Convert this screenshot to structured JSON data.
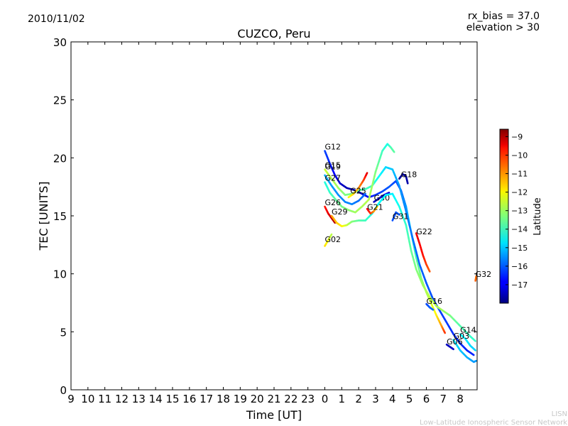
{
  "header": {
    "date": "2010/11/02",
    "rx_bias": "rx_bias = 37.0",
    "elevation": "elevation > 30"
  },
  "footer": {
    "line1": "LISN",
    "line2": "Low-Latitude Ionospheric Sensor Network"
  },
  "colorbar": {
    "label": "Latitude",
    "min": -18,
    "max": -8.6,
    "ticks": [
      -17,
      -16,
      -15,
      -14,
      -13,
      -12,
      -11,
      -10,
      -9
    ],
    "tick_labels": [
      "−17",
      "−16",
      "−15",
      "−14",
      "−13",
      "−12",
      "−11",
      "−10",
      "−9"
    ],
    "colormap": "jet"
  },
  "chart_data": {
    "type": "scatter",
    "title": "CUZCO, Peru",
    "xlabel": "Time [UT]",
    "ylabel": "TEC [UNITS]",
    "xlim": [
      -15,
      9
    ],
    "ylim": [
      0,
      30
    ],
    "x_ticks": [
      -15,
      -14,
      -13,
      -12,
      -11,
      -10,
      -9,
      -8,
      -7,
      -6,
      -5,
      -4,
      -3,
      -2,
      -1,
      0,
      1,
      2,
      3,
      4,
      5,
      6,
      7,
      8
    ],
    "x_tick_labels": [
      "9",
      "10",
      "11",
      "12",
      "13",
      "14",
      "15",
      "16",
      "17",
      "18",
      "19",
      "20",
      "21",
      "22",
      "23",
      "0",
      "1",
      "2",
      "3",
      "4",
      "5",
      "6",
      "7",
      "8"
    ],
    "y_ticks": [
      0,
      5,
      10,
      15,
      20,
      25,
      30
    ],
    "y_tick_labels": [
      "0",
      "5",
      "10",
      "15",
      "20",
      "25",
      "30"
    ],
    "grid": false,
    "series": [
      {
        "name": "G12",
        "label": {
          "x": 0.0,
          "y": 20.6
        },
        "points": [
          [
            0,
            20.6,
            -16.2
          ],
          [
            0.3,
            19.5,
            -16.5
          ],
          [
            0.6,
            18.5,
            -16.9
          ],
          [
            0.9,
            17.8,
            -17.3
          ],
          [
            1.3,
            17.4,
            -17.5
          ],
          [
            1.8,
            17.2,
            -17.6
          ],
          [
            2.2,
            16.9,
            -17.4
          ],
          [
            2.6,
            16.6,
            -16.8
          ],
          [
            3.0,
            16.8,
            -16.4
          ],
          [
            3.4,
            17.1,
            -16.2
          ],
          [
            3.8,
            17.5,
            -16.0
          ],
          [
            4.2,
            18.0,
            -16.2
          ],
          [
            4.5,
            17.2,
            -16.1
          ],
          [
            4.8,
            15.8,
            -15.4
          ],
          [
            5.1,
            13.6,
            -14.4
          ],
          [
            5.4,
            11.4,
            -13.7
          ],
          [
            5.7,
            9.6,
            -13.3
          ],
          [
            6.0,
            8.4,
            -12.9
          ],
          [
            6.3,
            7.4,
            -12.5
          ],
          [
            6.6,
            6.4,
            -12.0
          ],
          [
            6.9,
            5.5,
            -11.2
          ],
          [
            7.1,
            4.9,
            -10.2
          ]
        ]
      },
      {
        "name": "G15",
        "label": {
          "x": 0.0,
          "y": 19.0
        },
        "points": [
          [
            0,
            19.0,
            -12.6
          ],
          [
            0.4,
            18.2,
            -12.8
          ],
          [
            0.8,
            17.4,
            -13.0
          ],
          [
            1.2,
            16.8,
            -13.3
          ],
          [
            1.6,
            16.9,
            -13.4
          ],
          [
            2.0,
            17.2,
            -13.6
          ],
          [
            2.4,
            17.3,
            -13.8
          ],
          [
            2.8,
            17.6,
            -14.0
          ],
          [
            3.2,
            18.4,
            -14.4
          ],
          [
            3.6,
            19.2,
            -14.8
          ],
          [
            4.0,
            19.0,
            -15.0
          ],
          [
            4.4,
            17.6,
            -15.4
          ],
          [
            4.8,
            15.4,
            -15.6
          ],
          [
            5.2,
            13.0,
            -15.8
          ],
          [
            5.6,
            10.8,
            -15.9
          ],
          [
            6.0,
            9.2,
            -16.0
          ],
          [
            6.4,
            7.8,
            -16.1
          ],
          [
            6.8,
            6.8,
            -16.2
          ],
          [
            7.2,
            5.8,
            -16.3
          ],
          [
            7.6,
            4.8,
            -16.4
          ],
          [
            8.0,
            4.0,
            -16.4
          ],
          [
            8.4,
            3.4,
            -16.5
          ],
          [
            8.8,
            3.0,
            -16.5
          ]
        ]
      },
      {
        "name": "G19",
        "label": {
          "x": 0.0,
          "y": 18.9
        },
        "points": [
          [
            0,
            18.5,
            -15.2
          ],
          [
            0.4,
            17.6,
            -15.4
          ],
          [
            0.8,
            16.8,
            -15.5
          ],
          [
            1.2,
            16.2,
            -15.6
          ],
          [
            1.6,
            16.0,
            -15.6
          ],
          [
            2.0,
            16.3,
            -15.8
          ],
          [
            2.4,
            16.9,
            -15.9
          ]
        ]
      },
      {
        "name": "G27",
        "label": {
          "x": 0.0,
          "y": 17.9
        },
        "points": [
          [
            0,
            17.9,
            -14.2
          ],
          [
            0.3,
            17.0,
            -14.0
          ],
          [
            0.7,
            16.3,
            -13.6
          ],
          [
            1.0,
            15.8,
            -13.4
          ],
          [
            1.4,
            15.5,
            -13.2
          ],
          [
            1.8,
            15.3,
            -13.0
          ],
          [
            2.2,
            15.8,
            -12.9
          ],
          [
            2.6,
            16.4,
            -12.8
          ],
          [
            3.0,
            18.8,
            -13.3
          ],
          [
            3.4,
            20.6,
            -13.9
          ],
          [
            3.7,
            21.2,
            -14.3
          ],
          [
            3.9,
            20.9,
            -13.8
          ],
          [
            4.1,
            20.5,
            -13.6
          ]
        ]
      },
      {
        "name": "G25",
        "label": {
          "x": 1.5,
          "y": 16.8
        },
        "points": [
          [
            1.4,
            16.6,
            -12.3
          ],
          [
            1.7,
            16.9,
            -11.8
          ],
          [
            2.0,
            17.4,
            -11.2
          ],
          [
            2.3,
            18.1,
            -10.4
          ],
          [
            2.5,
            18.7,
            -9.5
          ]
        ]
      },
      {
        "name": "G30",
        "label": {
          "x": 2.9,
          "y": 16.2
        },
        "points": [
          [
            2.9,
            16.2,
            -17.4
          ],
          [
            3.2,
            16.5,
            -17.3
          ],
          [
            3.5,
            16.8,
            -17.2
          ],
          [
            3.8,
            17.0,
            -17.1
          ]
        ]
      },
      {
        "name": "G18",
        "label": {
          "x": 4.5,
          "y": 18.2
        },
        "points": [
          [
            4.4,
            18.2,
            -17.8
          ],
          [
            4.6,
            18.6,
            -17.8
          ],
          [
            4.8,
            18.4,
            -17.7
          ],
          [
            4.9,
            17.8,
            -17.6
          ]
        ]
      },
      {
        "name": "G26",
        "label": {
          "x": 0.0,
          "y": 15.8
        },
        "points": [
          [
            0,
            15.8,
            -10.0
          ],
          [
            0.2,
            15.2,
            -9.6
          ],
          [
            0.4,
            14.8,
            -9.3
          ],
          [
            0.6,
            14.4,
            -9.1
          ]
        ]
      },
      {
        "name": "G29",
        "label": {
          "x": 0.4,
          "y": 15.0
        },
        "points": [
          [
            0.4,
            15.0,
            -11.2
          ],
          [
            0.7,
            14.4,
            -11.6
          ],
          [
            1.0,
            14.1,
            -12.0
          ],
          [
            1.3,
            14.2,
            -12.6
          ],
          [
            1.6,
            14.5,
            -13.2
          ],
          [
            2.0,
            14.6,
            -13.6
          ],
          [
            2.4,
            14.6,
            -13.9
          ],
          [
            2.8,
            15.2,
            -14.2
          ],
          [
            3.2,
            16.1,
            -14.4
          ],
          [
            3.6,
            16.8,
            -14.6
          ],
          [
            4.0,
            16.9,
            -14.6
          ],
          [
            4.4,
            15.8,
            -14.3
          ],
          [
            4.8,
            14.2,
            -14.0
          ],
          [
            5.1,
            12.0,
            -13.6
          ],
          [
            5.4,
            10.4,
            -13.3
          ],
          [
            5.8,
            9.0,
            -13.0
          ],
          [
            6.2,
            8.0,
            -12.8
          ],
          [
            6.6,
            7.2,
            -12.8
          ],
          [
            7.0,
            6.8,
            -13.0
          ],
          [
            7.4,
            6.4,
            -13.3
          ],
          [
            7.8,
            5.8,
            -13.6
          ],
          [
            8.2,
            5.2,
            -13.8
          ],
          [
            8.6,
            4.6,
            -14.0
          ],
          [
            8.9,
            4.2,
            -14.0
          ]
        ]
      },
      {
        "name": "G21",
        "label": {
          "x": 2.5,
          "y": 15.4
        },
        "points": [
          [
            2.5,
            15.6,
            -9.6
          ],
          [
            2.7,
            15.2,
            -10.2
          ],
          [
            2.9,
            15.4,
            -11.0
          ],
          [
            3.1,
            15.8,
            -11.8
          ]
        ]
      },
      {
        "name": "G31",
        "label": {
          "x": 4.0,
          "y": 14.6
        },
        "points": [
          [
            4.0,
            14.6,
            -16.1
          ],
          [
            4.2,
            15.3,
            -16.1
          ],
          [
            4.4,
            15.1,
            -16.0
          ]
        ]
      },
      {
        "name": "G22",
        "label": {
          "x": 5.4,
          "y": 13.3
        },
        "points": [
          [
            5.4,
            13.5,
            -9.6
          ],
          [
            5.6,
            12.6,
            -9.7
          ],
          [
            5.8,
            11.6,
            -9.9
          ],
          [
            6.0,
            10.8,
            -10.3
          ],
          [
            6.2,
            10.2,
            -10.6
          ]
        ]
      },
      {
        "name": "G02",
        "label": {
          "x": 0.0,
          "y": 12.6
        },
        "points": [
          [
            0,
            12.4,
            -11.8
          ],
          [
            0.2,
            12.9,
            -12.2
          ],
          [
            0.4,
            13.4,
            -12.8
          ]
        ]
      },
      {
        "name": "G16",
        "label": {
          "x": 6.0,
          "y": 7.3
        },
        "points": [
          [
            6.0,
            7.4,
            -16.2
          ],
          [
            6.2,
            7.1,
            -16.0
          ],
          [
            6.4,
            6.9,
            -15.8
          ]
        ]
      },
      {
        "name": "G32",
        "label": {
          "x": 8.9,
          "y": 9.6
        },
        "points": [
          [
            8.9,
            9.4,
            -10.6
          ],
          [
            8.95,
            9.8,
            -10.8
          ]
        ]
      },
      {
        "name": "G14",
        "label": {
          "x": 8.0,
          "y": 4.8
        },
        "points": [
          [
            8.0,
            4.8,
            -14.4
          ],
          [
            8.3,
            4.4,
            -14.6
          ],
          [
            8.6,
            3.8,
            -14.8
          ],
          [
            8.9,
            3.4,
            -14.9
          ]
        ]
      },
      {
        "name": "G03",
        "label": {
          "x": 7.6,
          "y": 4.3
        },
        "points": [
          [
            7.6,
            4.3,
            -14.6
          ],
          [
            8.0,
            3.4,
            -15.0
          ],
          [
            8.4,
            2.8,
            -15.2
          ],
          [
            8.8,
            2.4,
            -15.4
          ],
          [
            8.95,
            2.5,
            -15.4
          ]
        ]
      },
      {
        "name": "G06",
        "label": {
          "x": 7.2,
          "y": 3.8
        },
        "points": [
          [
            7.2,
            3.9,
            -17.4
          ],
          [
            7.4,
            3.7,
            -17.4
          ],
          [
            7.6,
            3.5,
            -17.3
          ]
        ]
      }
    ]
  }
}
